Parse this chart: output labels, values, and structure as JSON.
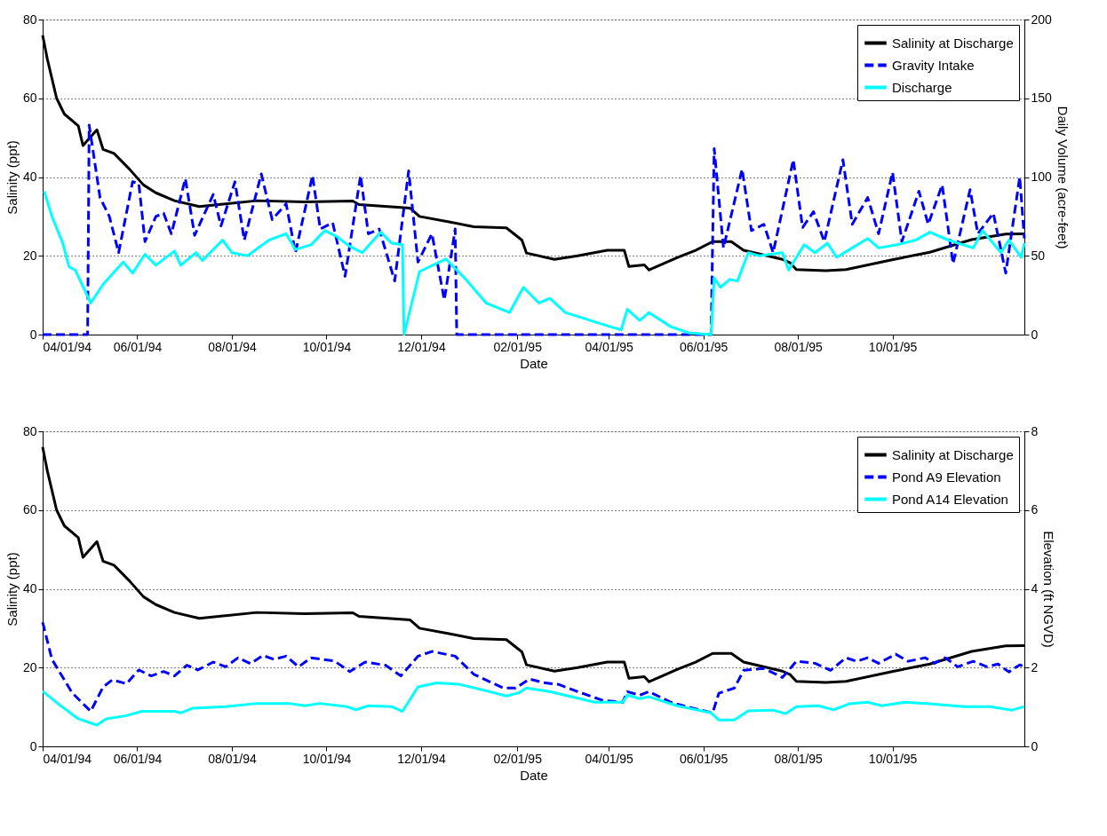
{
  "chart_data": [
    {
      "type": "line",
      "xlabel": "Date",
      "ylabel": "Salinity (ppt)",
      "y2label": "Daily Volume (acre-feet)",
      "xlim": [
        "1994-04-01",
        "1995-12-25"
      ],
      "xticks": [
        {
          "value": "1994-04-01",
          "label": "04/01/94"
        },
        {
          "value": "1994-06-01",
          "label": "06/01/94"
        },
        {
          "value": "1994-08-01",
          "label": "08/01/94"
        },
        {
          "value": "1994-10-01",
          "label": "10/01/94"
        },
        {
          "value": "1994-12-01",
          "label": "12/01/94"
        },
        {
          "value": "1995-02-01",
          "label": "02/01/95"
        },
        {
          "value": "1995-04-01",
          "label": "04/01/95"
        },
        {
          "value": "1995-06-01",
          "label": "06/01/95"
        },
        {
          "value": "1995-08-01",
          "label": "08/01/95"
        },
        {
          "value": "1995-10-01",
          "label": "10/01/95"
        }
      ],
      "ylim": [
        0,
        80
      ],
      "yticks": [
        0,
        20,
        40,
        60,
        80
      ],
      "y2lim": [
        0,
        200
      ],
      "y2ticks": [
        0,
        50,
        100,
        150,
        200
      ],
      "grid": "y",
      "legend": "top right",
      "series": [
        {
          "name": "Salinity at Discharge",
          "color": "#000000",
          "line_style": "solid",
          "x": [
            "1994-04-01",
            "1994-04-04",
            "1994-04-10",
            "1994-04-15",
            "1994-04-21",
            "1994-04-24",
            "1994-04-27",
            "1994-05-06",
            "1994-05-10",
            "1994-05-17",
            "1994-05-27",
            "1994-06-05",
            "1994-06-13",
            "1994-06-25",
            "1994-07-11",
            "1994-08-17",
            "1994-09-17",
            "1994-10-18",
            "1994-10-22",
            "1994-11-24",
            "1994-11-30",
            "1994-12-19",
            "1995-01-04",
            "1995-01-25",
            "1995-02-04",
            "1995-02-07",
            "1995-02-25",
            "1995-03-12",
            "1995-03-31",
            "1995-04-11",
            "1995-04-14",
            "1995-04-24",
            "1995-04-27",
            "1995-05-15",
            "1995-05-27",
            "1995-06-07",
            "1995-06-19",
            "1995-06-27",
            "1995-07-22",
            "1995-07-27",
            "1995-07-31",
            "1995-08-19",
            "1995-09-01",
            "1995-10-02",
            "1995-10-25",
            "1995-11-21",
            "1995-12-13",
            "1995-12-25"
          ],
          "values": [
            76,
            70,
            60,
            56,
            54,
            53,
            48,
            52,
            47,
            46,
            42,
            38,
            36,
            34,
            32.5,
            34,
            33.7,
            33.9,
            33,
            32.1,
            30,
            28.6,
            27.4,
            27.1,
            24,
            20.7,
            19.1,
            20,
            21.4,
            21.4,
            17.3,
            17.7,
            16.4,
            19.5,
            21.4,
            23.6,
            23.6,
            21.4,
            19.1,
            18.2,
            16.5,
            16.2,
            16.5,
            19.1,
            20.9,
            24.1,
            25.5,
            25.6
          ]
        },
        {
          "name": "Gravity Intake",
          "color": "#0000ff",
          "line_style": "dashed",
          "axis": "y2",
          "x": [
            "1994-04-01",
            "1994-04-30",
            "1994-05-01",
            "1994-05-08",
            "1994-05-14",
            "1994-05-20",
            "1994-05-29",
            "1994-06-02",
            "1994-06-06",
            "1994-06-13",
            "1994-06-18",
            "1994-06-23",
            "1994-07-02",
            "1994-07-08",
            "1994-07-20",
            "1994-07-25",
            "1994-08-03",
            "1994-08-09",
            "1994-08-20",
            "1994-08-27",
            "1994-09-05",
            "1994-09-11",
            "1994-09-22",
            "1994-09-27",
            "1994-10-05",
            "1994-10-13",
            "1994-10-23",
            "1994-10-28",
            "1994-11-04",
            "1994-11-14",
            "1994-11-23",
            "1994-11-29",
            "1994-12-08",
            "1994-12-16",
            "1994-12-23",
            "1994-12-24",
            "1995-06-06",
            "1995-06-08",
            "1995-06-14",
            "1995-06-26",
            "1995-07-02",
            "1995-07-10",
            "1995-07-16",
            "1995-07-29",
            "1995-08-04",
            "1995-08-11",
            "1995-08-18",
            "1995-08-30",
            "1995-09-05",
            "1995-09-15",
            "1995-09-22",
            "1995-10-01",
            "1995-10-07",
            "1995-10-18",
            "1995-10-24",
            "1995-11-02",
            "1995-11-09",
            "1995-11-20",
            "1995-11-25",
            "1995-12-05",
            "1995-12-13",
            "1995-12-22",
            "1995-12-25"
          ],
          "values": [
            0,
            0,
            133,
            87,
            75,
            52,
            97,
            96,
            59,
            75,
            77,
            64,
            99,
            63,
            89,
            69,
            97,
            60,
            102,
            73,
            83,
            52,
            101,
            67,
            71,
            37,
            101,
            64,
            67,
            34,
            104,
            46,
            64,
            22,
            67,
            0,
            0,
            118,
            55,
            105,
            66,
            70,
            52,
            111,
            68,
            78,
            59,
            111,
            70,
            87,
            64,
            103,
            59,
            91,
            70,
            95,
            45,
            92,
            64,
            77,
            39,
            100,
            61
          ]
        },
        {
          "name": "Discharge",
          "color": "#00ffff",
          "line_style": "solid",
          "axis": "y2",
          "x": [
            "1994-04-02",
            "1994-04-07",
            "1994-04-14",
            "1994-04-18",
            "1994-04-22",
            "1994-05-02",
            "1994-05-10",
            "1994-05-23",
            "1994-05-29",
            "1994-06-06",
            "1994-06-13",
            "1994-06-25",
            "1994-06-29",
            "1994-07-09",
            "1994-07-13",
            "1994-07-26",
            "1994-08-01",
            "1994-08-11",
            "1994-08-25",
            "1994-09-05",
            "1994-09-11",
            "1994-09-21",
            "1994-09-30",
            "1994-10-08",
            "1994-10-16",
            "1994-10-24",
            "1994-11-05",
            "1994-11-12",
            "1994-11-19",
            "1994-11-20",
            "1994-11-30",
            "1994-12-17",
            "1994-12-29",
            "1995-01-12",
            "1995-01-27",
            "1995-02-05",
            "1995-02-15",
            "1995-02-22",
            "1995-03-04",
            "1995-04-02",
            "1995-04-09",
            "1995-04-13",
            "1995-04-21",
            "1995-04-27",
            "1995-05-11",
            "1995-05-23",
            "1995-06-06",
            "1995-06-08",
            "1995-06-12",
            "1995-06-18",
            "1995-06-23",
            "1995-06-30",
            "1995-07-07",
            "1995-07-22",
            "1995-07-26",
            "1995-08-05",
            "1995-08-12",
            "1995-08-20",
            "1995-08-26",
            "1995-09-05",
            "1995-09-15",
            "1995-09-22",
            "1995-10-04",
            "1995-10-16",
            "1995-10-25",
            "1995-11-06",
            "1995-11-22",
            "1995-11-28",
            "1995-12-10",
            "1995-12-15",
            "1995-12-23",
            "1995-12-25"
          ],
          "values": [
            91,
            75,
            58,
            43,
            41,
            20,
            32,
            46,
            39,
            51,
            44,
            53,
            44,
            52,
            47,
            60,
            52,
            50,
            60,
            64,
            54,
            57,
            66,
            62,
            56,
            52,
            65,
            58,
            57,
            0,
            40,
            48,
            36,
            20,
            14,
            30,
            20,
            23,
            14,
            5,
            3,
            16,
            9,
            14,
            5,
            1,
            0,
            36,
            30,
            35,
            34,
            52,
            50,
            52,
            41,
            57,
            52,
            58,
            49,
            55,
            61,
            55,
            57,
            60,
            65,
            60,
            55,
            66,
            52,
            60,
            49,
            58
          ]
        }
      ]
    },
    {
      "type": "line",
      "xlabel": "Date",
      "ylabel": "Salinity (ppt)",
      "y2label": "Elevation (ft NGVD)",
      "xlim": [
        "1994-04-01",
        "1995-12-25"
      ],
      "xticks": [
        {
          "value": "1994-04-01",
          "label": "04/01/94"
        },
        {
          "value": "1994-06-01",
          "label": "06/01/94"
        },
        {
          "value": "1994-08-01",
          "label": "08/01/94"
        },
        {
          "value": "1994-10-01",
          "label": "10/01/94"
        },
        {
          "value": "1994-12-01",
          "label": "12/01/94"
        },
        {
          "value": "1995-02-01",
          "label": "02/01/95"
        },
        {
          "value": "1995-04-01",
          "label": "04/01/95"
        },
        {
          "value": "1995-06-01",
          "label": "06/01/95"
        },
        {
          "value": "1995-08-01",
          "label": "08/01/95"
        },
        {
          "value": "1995-10-01",
          "label": "10/01/95"
        }
      ],
      "ylim": [
        0,
        80
      ],
      "yticks": [
        0,
        20,
        40,
        60,
        80
      ],
      "y2lim": [
        0,
        8
      ],
      "y2ticks": [
        0,
        2,
        4,
        6,
        8
      ],
      "grid": "y",
      "legend": "top right",
      "series": [
        {
          "name": "Salinity at Discharge",
          "color": "#000000",
          "line_style": "solid",
          "x": [
            "1994-04-01",
            "1994-04-04",
            "1994-04-10",
            "1994-04-15",
            "1994-04-21",
            "1994-04-24",
            "1994-04-27",
            "1994-05-06",
            "1994-05-10",
            "1994-05-17",
            "1994-05-27",
            "1994-06-05",
            "1994-06-13",
            "1994-06-25",
            "1994-07-11",
            "1994-08-17",
            "1994-09-17",
            "1994-10-18",
            "1994-10-22",
            "1994-11-24",
            "1994-11-30",
            "1994-12-19",
            "1995-01-04",
            "1995-01-25",
            "1995-02-04",
            "1995-02-07",
            "1995-02-25",
            "1995-03-12",
            "1995-03-31",
            "1995-04-11",
            "1995-04-14",
            "1995-04-24",
            "1995-04-27",
            "1995-05-15",
            "1995-05-27",
            "1995-06-07",
            "1995-06-19",
            "1995-06-27",
            "1995-07-22",
            "1995-07-27",
            "1995-07-31",
            "1995-08-19",
            "1995-09-01",
            "1995-10-02",
            "1995-10-25",
            "1995-11-21",
            "1995-12-13",
            "1995-12-25"
          ],
          "values": [
            76,
            70,
            60,
            56,
            54,
            53,
            48,
            52,
            47,
            46,
            42,
            38,
            36,
            34,
            32.5,
            34,
            33.7,
            33.9,
            33,
            32.1,
            30,
            28.6,
            27.4,
            27.1,
            24,
            20.7,
            19.1,
            20,
            21.4,
            21.4,
            17.3,
            17.7,
            16.4,
            19.5,
            21.4,
            23.6,
            23.6,
            21.4,
            19.1,
            18.2,
            16.5,
            16.2,
            16.5,
            19.1,
            20.9,
            24.1,
            25.5,
            25.6
          ]
        },
        {
          "name": "Pond A9 Elevation",
          "color": "#0000ff",
          "line_style": "dashed",
          "axis": "y2",
          "x": [
            "1994-04-01",
            "1994-04-07",
            "1994-04-20",
            "1994-05-02",
            "1994-05-10",
            "1994-05-16",
            "1994-05-25",
            "1994-06-02",
            "1994-06-10",
            "1994-06-18",
            "1994-06-25",
            "1994-07-03",
            "1994-07-10",
            "1994-07-20",
            "1994-07-28",
            "1994-08-05",
            "1994-08-13",
            "1994-08-21",
            "1994-08-28",
            "1994-09-05",
            "1994-09-13",
            "1994-09-21",
            "1994-10-06",
            "1994-10-16",
            "1994-10-26",
            "1994-11-08",
            "1994-11-18",
            "1994-11-29",
            "1994-12-08",
            "1994-12-23",
            "1995-01-04",
            "1995-01-23",
            "1995-01-31",
            "1995-02-09",
            "1995-02-18",
            "1995-02-28",
            "1995-03-12",
            "1995-03-28",
            "1995-04-10",
            "1995-04-13",
            "1995-04-21",
            "1995-04-27",
            "1995-05-11",
            "1995-05-23",
            "1995-06-07",
            "1995-06-11",
            "1995-06-21",
            "1995-06-27",
            "1995-07-10",
            "1995-07-22",
            "1995-07-31",
            "1995-08-12",
            "1995-08-22",
            "1995-09-01",
            "1995-09-08",
            "1995-09-15",
            "1995-09-22",
            "1995-10-03",
            "1995-10-11",
            "1995-10-22",
            "1995-10-28",
            "1995-11-04",
            "1995-11-12",
            "1995-11-22",
            "1995-12-01",
            "1995-12-08",
            "1995-12-15",
            "1995-12-22",
            "1995-12-25"
          ],
          "values": [
            3.15,
            2.21,
            1.36,
            0.89,
            1.51,
            1.69,
            1.59,
            1.94,
            1.79,
            1.9,
            1.79,
            2.06,
            1.94,
            2.14,
            2.02,
            2.25,
            2.1,
            2.31,
            2.21,
            2.29,
            2.02,
            2.25,
            2.17,
            1.9,
            2.14,
            2.06,
            1.79,
            2.29,
            2.41,
            2.29,
            1.83,
            1.48,
            1.48,
            1.71,
            1.62,
            1.57,
            1.39,
            1.17,
            1.12,
            1.39,
            1.3,
            1.39,
            1.12,
            0.99,
            0.85,
            1.35,
            1.48,
            1.93,
            1.98,
            1.75,
            2.16,
            2.11,
            1.93,
            2.25,
            2.16,
            2.25,
            2.11,
            2.34,
            2.16,
            2.25,
            2.11,
            2.25,
            2.02,
            2.16,
            2.02,
            2.09,
            1.89,
            2.07,
            2.02
          ]
        },
        {
          "name": "Pond A14 Elevation",
          "color": "#00ffff",
          "line_style": "solid",
          "axis": "y2",
          "x": [
            "1994-04-01",
            "1994-04-12",
            "1994-04-24",
            "1994-05-06",
            "1994-05-12",
            "1994-05-25",
            "1994-06-04",
            "1994-06-25",
            "1994-06-29",
            "1994-07-07",
            "1994-07-28",
            "1994-08-17",
            "1994-09-07",
            "1994-09-17",
            "1994-09-27",
            "1994-10-14",
            "1994-10-20",
            "1994-10-28",
            "1994-11-12",
            "1994-11-19",
            "1994-11-29",
            "1994-12-11",
            "1994-12-25",
            "1995-01-08",
            "1995-01-25",
            "1995-02-02",
            "1995-02-07",
            "1995-02-22",
            "1995-03-23",
            "1995-04-10",
            "1995-04-13",
            "1995-04-21",
            "1995-04-27",
            "1995-05-15",
            "1995-06-06",
            "1995-06-11",
            "1995-06-21",
            "1995-06-30",
            "1995-07-16",
            "1995-07-24",
            "1995-07-31",
            "1995-08-14",
            "1995-08-24",
            "1995-09-03",
            "1995-09-15",
            "1995-09-24",
            "1995-10-09",
            "1995-10-25",
            "1995-11-16",
            "1995-12-03",
            "1995-12-17",
            "1995-12-25"
          ],
          "values": [
            1.4,
            1.05,
            0.7,
            0.54,
            0.7,
            0.78,
            0.89,
            0.89,
            0.85,
            0.97,
            1.01,
            1.09,
            1.09,
            1.03,
            1.09,
            1.01,
            0.93,
            1.03,
            1.01,
            0.89,
            1.51,
            1.61,
            1.58,
            1.45,
            1.28,
            1.36,
            1.48,
            1.39,
            1.12,
            1.12,
            1.3,
            1.21,
            1.26,
            1.03,
            0.85,
            0.67,
            0.67,
            0.9,
            0.92,
            0.83,
            1.01,
            1.03,
            0.93,
            1.08,
            1.12,
            1.03,
            1.12,
            1.08,
            1.01,
            1.01,
            0.92,
            1.01
          ]
        }
      ]
    }
  ]
}
